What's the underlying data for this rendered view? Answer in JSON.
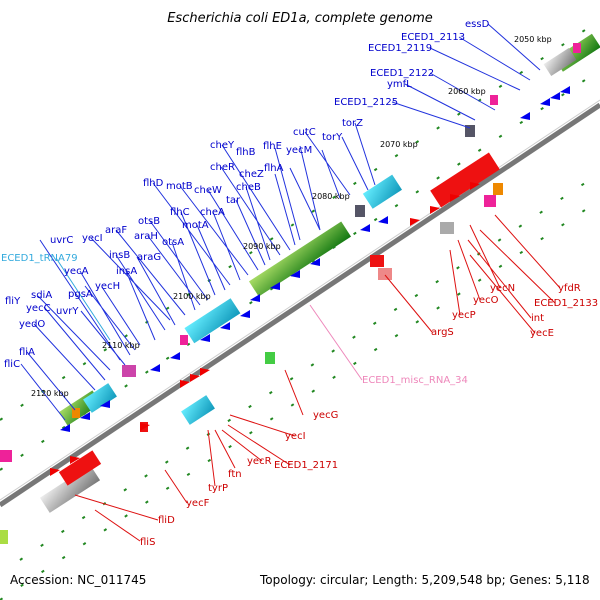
{
  "title": "Escherichia coli ED1a, complete genome",
  "footer": {
    "accession": "Accession: NC_011745",
    "summary": "Topology: circular; Length: 5,209,548 bp; Genes: 5,118"
  },
  "colors": {
    "forward_gene": "#0000ee",
    "reverse_gene": "#ee0000",
    "trna": "#33aadd",
    "misc_rna": "#ee88bb",
    "backbone": "#888888",
    "ticks": "#228822"
  },
  "kbp_labels": [
    "2050 kbp",
    "2060 kbp",
    "2070 kbp",
    "2080 kbp",
    "2090 kbp",
    "2100 kbp",
    "2110 kbp",
    "2120 kbp"
  ],
  "forward_labels": [
    "essD",
    "ECED1_2113",
    "ECED1_2119",
    "ECED1_2122",
    "ymfL",
    "ECED1_2125",
    "torZ",
    "torY",
    "cutC",
    "yecM",
    "flhE",
    "flhA",
    "flhB",
    "cheZ",
    "cheY",
    "cheR",
    "cheB",
    "tar",
    "cheW",
    "motB",
    "cheA",
    "flhD",
    "motA",
    "flhC",
    "otsB",
    "araH",
    "otsA",
    "yecI",
    "araF",
    "insB",
    "araG",
    "insA",
    "uvrC",
    "yecA",
    "yecH",
    "pgsA",
    "sdiA",
    "fliY",
    "yecC",
    "uvrY",
    "yedO",
    "fliA",
    "fliC"
  ],
  "trna_labels": [
    "ECED1_tRNA79"
  ],
  "misc_labels": [
    "ECED1_misc_RNA_34"
  ],
  "reverse_labels": [
    "yfdR",
    "yecN",
    "ECED1_2133",
    "int",
    "yecO",
    "yecP",
    "yecE",
    "argS",
    "yecG",
    "yecI",
    "yecR",
    "ECED1_2171",
    "ftn",
    "tyrP",
    "yecF",
    "fliD",
    "fliS"
  ]
}
